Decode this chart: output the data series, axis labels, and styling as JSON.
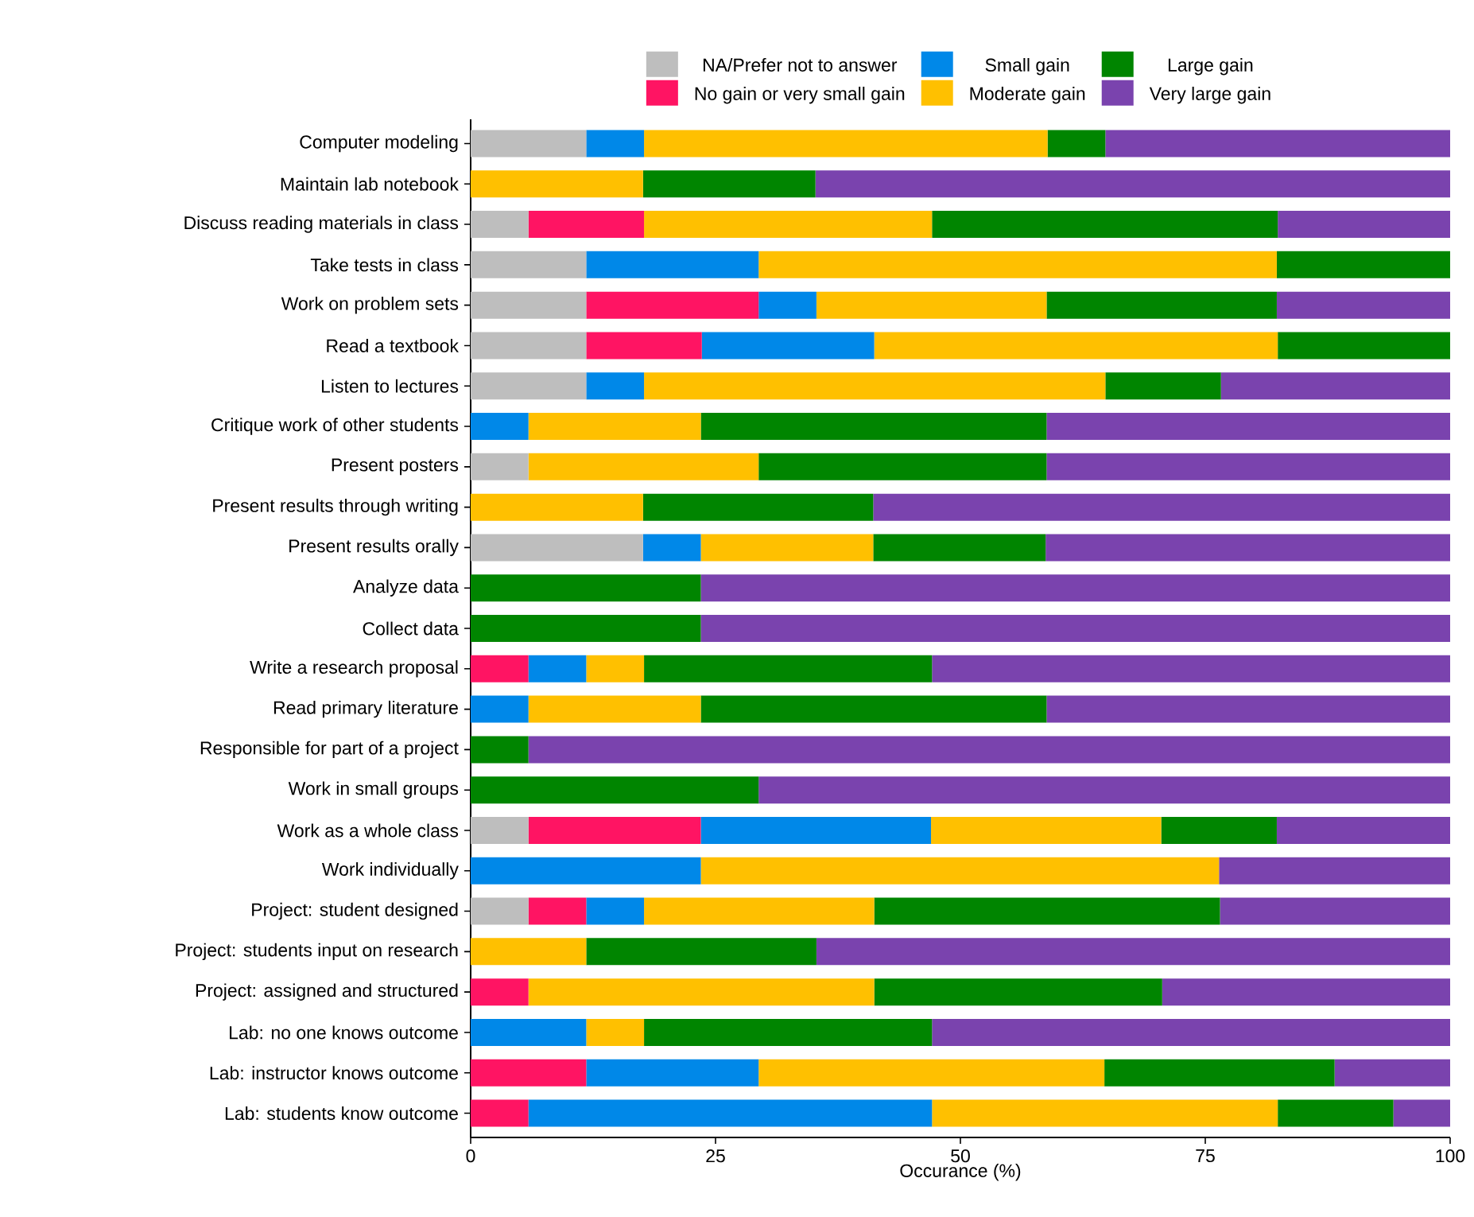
{
  "chart_data": {
    "type": "bar",
    "orientation": "horizontal",
    "stacked": true,
    "xlabel": "Occurance (%)",
    "categories": [
      "Computer modeling",
      "Maintain lab notebook",
      "Discuss reading materials in class",
      "Take tests in class",
      "Work on problem sets",
      "Read a textbook",
      "Listen to lectures",
      "Critique work of other students",
      "Present posters",
      "Present results through writing",
      "Present results orally",
      "Analyze data",
      "Collect data",
      "Write a research proposal",
      "Read primary literature",
      "Responsible for part of a project",
      "Work in small groups",
      "Work as a whole class",
      "Work individually",
      "Project: student designed",
      "Project: students input on research",
      "Project: assigned and structured",
      "Lab: no one knows outcome",
      "Lab: instructor knows outcome",
      "Lab: students know outcome"
    ],
    "series": [
      {
        "name": "NA/Prefer not to answer",
        "color": "#bebebe",
        "values": [
          11.8,
          0,
          5.9,
          11.8,
          11.8,
          11.8,
          11.8,
          0,
          5.9,
          0,
          17.6,
          0,
          0,
          0,
          0,
          0,
          0,
          5.9,
          0,
          5.9,
          0,
          0,
          0,
          0,
          0
        ]
      },
      {
        "name": "No gain or very small gain",
        "color": "#ff1463",
        "values": [
          0,
          0,
          11.8,
          0,
          17.6,
          11.8,
          0,
          0,
          0,
          0,
          0,
          0,
          0,
          5.9,
          0,
          0,
          0,
          17.6,
          0,
          5.9,
          0,
          5.9,
          0,
          11.8,
          5.9
        ]
      },
      {
        "name": "Small gain",
        "color": "#0088e8",
        "values": [
          5.9,
          0,
          0,
          17.6,
          5.9,
          17.6,
          5.9,
          5.9,
          0,
          0,
          5.9,
          0,
          0,
          5.9,
          5.9,
          0,
          0,
          23.5,
          23.5,
          5.9,
          0,
          0,
          11.8,
          17.6,
          41.2
        ]
      },
      {
        "name": "Moderate gain",
        "color": "#ffc000",
        "values": [
          41.2,
          17.6,
          29.4,
          52.9,
          23.5,
          41.2,
          47.1,
          17.6,
          23.5,
          17.6,
          17.6,
          0,
          0,
          5.9,
          17.6,
          0,
          0,
          23.5,
          52.9,
          23.5,
          11.8,
          35.3,
          5.9,
          35.3,
          35.3
        ]
      },
      {
        "name": "Large gain",
        "color": "#008500",
        "values": [
          5.9,
          17.6,
          35.3,
          17.7,
          23.5,
          17.6,
          11.8,
          35.3,
          29.4,
          23.5,
          17.6,
          23.5,
          23.5,
          29.4,
          35.3,
          5.9,
          29.4,
          11.8,
          0,
          35.3,
          23.5,
          29.4,
          29.4,
          23.5,
          11.8
        ]
      },
      {
        "name": "Very large gain",
        "color": "#7a43ae",
        "values": [
          35.2,
          64.8,
          17.6,
          0,
          17.7,
          0,
          23.4,
          41.2,
          41.2,
          58.9,
          41.3,
          76.5,
          76.5,
          52.9,
          41.2,
          94.1,
          70.6,
          17.7,
          23.6,
          23.5,
          64.7,
          29.4,
          52.9,
          11.8,
          5.8
        ]
      }
    ],
    "xlim": [
      0,
      100
    ],
    "xticks": [
      0,
      25,
      50,
      75,
      100
    ],
    "grid": false,
    "legend": "top"
  }
}
